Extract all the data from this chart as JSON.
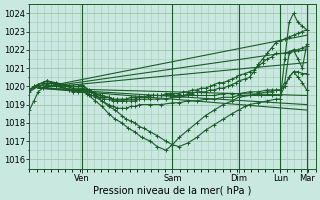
{
  "xlabel": "Pression niveau de la mer( hPa )",
  "bg_color": "#c8e8e0",
  "grid_color": "#a8c8b8",
  "line_color": "#1a5c28",
  "ylim": [
    1015.5,
    1024.5
  ],
  "yticks": [
    1016,
    1017,
    1018,
    1019,
    1020,
    1021,
    1022,
    1023,
    1024
  ],
  "xlim": [
    0,
    130
  ],
  "day_positions": [
    24,
    65,
    95,
    114,
    126
  ],
  "day_labels": [
    "Ven",
    "Sam",
    "Dim",
    "Lun",
    "Mar"
  ],
  "vline_positions": [
    24,
    65,
    95,
    114,
    126
  ],
  "fan_lines": [
    {
      "x0": 4,
      "y0": 1019.9,
      "x1": 126,
      "y1": 1022.8
    },
    {
      "x0": 4,
      "y0": 1019.9,
      "x1": 126,
      "y1": 1022.0
    },
    {
      "x0": 4,
      "y0": 1019.9,
      "x1": 126,
      "y1": 1021.3
    },
    {
      "x0": 4,
      "y0": 1019.9,
      "x1": 126,
      "y1": 1019.5
    },
    {
      "x0": 4,
      "y0": 1019.9,
      "x1": 126,
      "y1": 1019.0
    },
    {
      "x0": 4,
      "y0": 1019.9,
      "x1": 126,
      "y1": 1018.7
    }
  ],
  "curves": [
    {
      "x": [
        0,
        2,
        4,
        6,
        8,
        10,
        12,
        14,
        16,
        18,
        20,
        22,
        24,
        26,
        28,
        30,
        32,
        34,
        36,
        38,
        40,
        42,
        44,
        46,
        48,
        50,
        52,
        54,
        56,
        58,
        60,
        62,
        64,
        65,
        68,
        70,
        72,
        74,
        76,
        78,
        80,
        82,
        84,
        86,
        88,
        90,
        92,
        94,
        95,
        98,
        100,
        102,
        104,
        106,
        108,
        110,
        112,
        114,
        116,
        118,
        120,
        122,
        124,
        126
      ],
      "y": [
        1019.8,
        1020.0,
        1020.1,
        1020.2,
        1020.3,
        1020.2,
        1020.1,
        1020.0,
        1019.9,
        1019.8,
        1019.8,
        1019.8,
        1019.9,
        1019.8,
        1019.7,
        1019.6,
        1019.5,
        1019.4,
        1019.4,
        1019.3,
        1019.3,
        1019.3,
        1019.3,
        1019.4,
        1019.4,
        1019.4,
        1019.4,
        1019.5,
        1019.5,
        1019.5,
        1019.5,
        1019.5,
        1019.5,
        1019.5,
        1019.5,
        1019.5,
        1019.6,
        1019.6,
        1019.7,
        1019.7,
        1019.7,
        1019.8,
        1019.8,
        1019.9,
        1019.9,
        1020.0,
        1020.1,
        1020.2,
        1020.3,
        1020.4,
        1020.5,
        1020.8,
        1021.2,
        1021.5,
        1021.8,
        1022.1,
        1022.4,
        1022.5,
        1022.6,
        1022.7,
        1022.8,
        1022.9,
        1023.0,
        1023.1
      ]
    },
    {
      "x": [
        0,
        2,
        4,
        6,
        8,
        10,
        12,
        14,
        16,
        18,
        20,
        22,
        24,
        26,
        28,
        30,
        32,
        34,
        36,
        38,
        40,
        42,
        44,
        46,
        48,
        50,
        52,
        54,
        56,
        58,
        60,
        62,
        64,
        65,
        68,
        70,
        72,
        74,
        76,
        78,
        80,
        82,
        84,
        86,
        88,
        90,
        92,
        94,
        95,
        98,
        100,
        102,
        104,
        106,
        108,
        110,
        112,
        114,
        116,
        118,
        120,
        122,
        124,
        126
      ],
      "y": [
        1019.8,
        1020.0,
        1020.1,
        1020.2,
        1020.3,
        1020.2,
        1020.1,
        1020.0,
        1019.9,
        1019.8,
        1019.7,
        1019.7,
        1019.7,
        1019.6,
        1019.5,
        1019.5,
        1019.4,
        1019.3,
        1019.3,
        1019.2,
        1019.2,
        1019.2,
        1019.3,
        1019.3,
        1019.3,
        1019.4,
        1019.4,
        1019.4,
        1019.5,
        1019.5,
        1019.5,
        1019.6,
        1019.6,
        1019.6,
        1019.6,
        1019.7,
        1019.7,
        1019.8,
        1019.8,
        1019.9,
        1019.9,
        1020.0,
        1020.1,
        1020.2,
        1020.2,
        1020.3,
        1020.4,
        1020.5,
        1020.6,
        1020.7,
        1020.8,
        1020.9,
        1021.1,
        1021.3,
        1021.5,
        1021.6,
        1021.8,
        1021.8,
        1021.8,
        1021.9,
        1022.0,
        1022.0,
        1022.1,
        1022.2
      ]
    },
    {
      "x": [
        0,
        2,
        4,
        6,
        8,
        10,
        12,
        14,
        16,
        18,
        20,
        22,
        24,
        27,
        30,
        33,
        36,
        39,
        42,
        44,
        46,
        48,
        50,
        52,
        55,
        58,
        62,
        65,
        68,
        72,
        76,
        80,
        84,
        88,
        92,
        95,
        98,
        100,
        104,
        108,
        112,
        114,
        116,
        118,
        120,
        122,
        124,
        126
      ],
      "y": [
        1018.7,
        1019.2,
        1019.7,
        1019.9,
        1020.1,
        1020.2,
        1020.2,
        1020.1,
        1020.1,
        1020.0,
        1020.0,
        1020.0,
        1020.1,
        1019.8,
        1019.5,
        1019.2,
        1018.9,
        1018.7,
        1018.4,
        1018.2,
        1018.1,
        1018.0,
        1017.8,
        1017.7,
        1017.5,
        1017.3,
        1017.0,
        1016.8,
        1016.7,
        1016.9,
        1017.2,
        1017.6,
        1017.9,
        1018.2,
        1018.5,
        1018.7,
        1018.9,
        1019.0,
        1019.1,
        1019.2,
        1019.3,
        1019.3,
        1021.5,
        1023.5,
        1024.0,
        1023.5,
        1023.3,
        1023.1
      ]
    },
    {
      "x": [
        0,
        4,
        8,
        12,
        16,
        20,
        24,
        27,
        30,
        33,
        36,
        39,
        42,
        45,
        48,
        51,
        55,
        58,
        62,
        65,
        68,
        72,
        76,
        80,
        84,
        88,
        92,
        95,
        100,
        104,
        108,
        110,
        112,
        114,
        116,
        118,
        120,
        122,
        124,
        126
      ],
      "y": [
        1019.8,
        1020.0,
        1020.1,
        1020.0,
        1019.9,
        1019.8,
        1019.8,
        1019.5,
        1019.2,
        1018.9,
        1018.5,
        1018.2,
        1018.0,
        1017.7,
        1017.5,
        1017.2,
        1017.0,
        1016.7,
        1016.5,
        1016.8,
        1017.2,
        1017.6,
        1018.0,
        1018.4,
        1018.7,
        1019.0,
        1019.2,
        1019.4,
        1019.5,
        1019.6,
        1019.7,
        1019.7,
        1019.8,
        1019.8,
        1020.2,
        1021.8,
        1022.0,
        1021.5,
        1021.0,
        1022.3
      ]
    },
    {
      "x": [
        0,
        4,
        8,
        12,
        16,
        20,
        24,
        27,
        30,
        33,
        36,
        38,
        40,
        42,
        44,
        46,
        48,
        50,
        52,
        55,
        58,
        62,
        65,
        68,
        72,
        76,
        80,
        84,
        88,
        92,
        95,
        100,
        104,
        108,
        110,
        112,
        114,
        116,
        118,
        120,
        122,
        124,
        126
      ],
      "y": [
        1019.8,
        1020.1,
        1020.3,
        1020.2,
        1020.1,
        1020.0,
        1020.0,
        1019.8,
        1019.6,
        1019.5,
        1019.4,
        1019.3,
        1019.2,
        1019.2,
        1019.2,
        1019.2,
        1019.2,
        1019.3,
        1019.3,
        1019.3,
        1019.3,
        1019.3,
        1019.4,
        1019.4,
        1019.5,
        1019.5,
        1019.5,
        1019.5,
        1019.6,
        1019.6,
        1019.6,
        1019.7,
        1019.7,
        1019.8,
        1019.8,
        1019.8,
        1019.8,
        1020.0,
        1020.5,
        1020.8,
        1020.8,
        1020.7,
        1020.7
      ]
    },
    {
      "x": [
        0,
        4,
        8,
        12,
        16,
        20,
        24,
        27,
        30,
        33,
        36,
        38,
        40,
        42,
        44,
        46,
        48,
        50,
        55,
        60,
        65,
        68,
        72,
        76,
        80,
        84,
        88,
        92,
        95,
        100,
        105,
        110,
        114,
        116,
        118,
        120,
        122,
        124,
        126
      ],
      "y": [
        1019.7,
        1020.0,
        1020.2,
        1020.1,
        1020.0,
        1019.9,
        1019.9,
        1019.6,
        1019.4,
        1019.2,
        1019.0,
        1018.9,
        1018.8,
        1018.8,
        1018.8,
        1018.9,
        1018.9,
        1019.0,
        1019.0,
        1019.0,
        1019.1,
        1019.1,
        1019.2,
        1019.2,
        1019.3,
        1019.3,
        1019.4,
        1019.4,
        1019.5,
        1019.5,
        1019.5,
        1019.5,
        1019.5,
        1020.0,
        1020.5,
        1020.8,
        1020.5,
        1020.2,
        1019.8
      ]
    }
  ]
}
